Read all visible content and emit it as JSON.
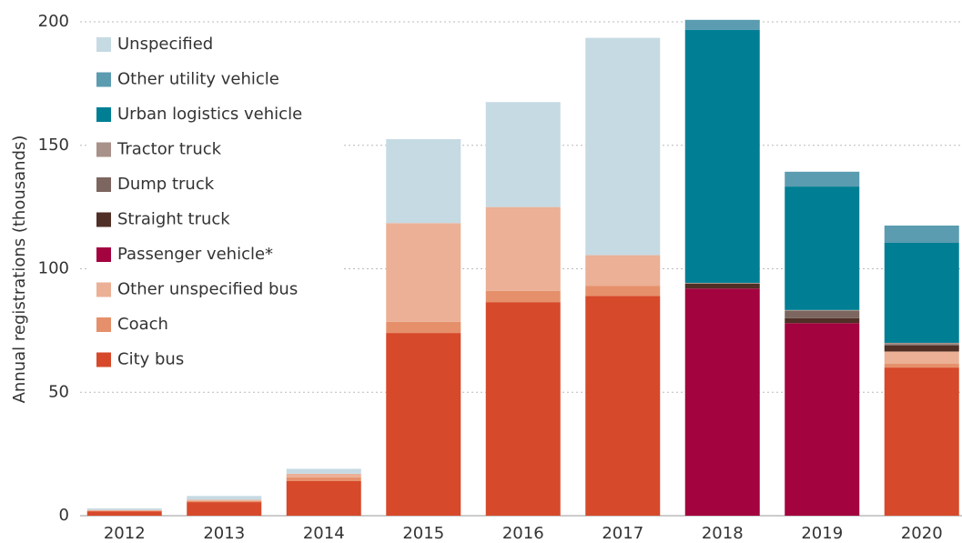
{
  "chart_data": {
    "type": "stacked_bar",
    "y_label": "Annual registrations (thousands)",
    "categories": [
      "2012",
      "2013",
      "2014",
      "2015",
      "2016",
      "2017",
      "2018",
      "2019",
      "2020"
    ],
    "series": [
      {
        "name": "City bus",
        "color": "#d6492a",
        "values": [
          1.8,
          5.5,
          14,
          74,
          86.5,
          89,
          0,
          0,
          60
        ]
      },
      {
        "name": "Coach",
        "color": "#e6906b",
        "values": [
          0.2,
          0.5,
          1.5,
          4.5,
          4.5,
          4,
          0,
          0,
          1.5
        ]
      },
      {
        "name": "Other unspecified bus",
        "color": "#ebb095",
        "values": [
          0.3,
          0.5,
          1.5,
          40,
          34,
          12.5,
          0,
          0,
          5
        ]
      },
      {
        "name": "Passenger vehicle*",
        "color": "#a3033e",
        "values": [
          0,
          0,
          0,
          0,
          0,
          0,
          92,
          78,
          0
        ]
      },
      {
        "name": "Straight truck",
        "color": "#4f2f26",
        "values": [
          0,
          0,
          0,
          0,
          0,
          0,
          2,
          2,
          2.5
        ]
      },
      {
        "name": "Dump truck",
        "color": "#7d6660",
        "values": [
          0,
          0,
          0,
          0,
          0,
          0,
          0,
          3,
          0.5
        ]
      },
      {
        "name": "Tractor truck",
        "color": "#a89189",
        "values": [
          0,
          0,
          0,
          0,
          0,
          0,
          0.3,
          0.3,
          0.5
        ]
      },
      {
        "name": "Urban logistics vehicle",
        "color": "#007f94",
        "values": [
          0,
          0,
          0,
          0,
          0,
          0,
          102.5,
          50,
          40.5
        ]
      },
      {
        "name": "Other utility vehicle",
        "color": "#5b9cb0",
        "values": [
          0,
          0,
          0,
          0,
          0,
          0,
          4,
          6,
          7
        ]
      },
      {
        "name": "Unspecified",
        "color": "#c6dae3",
        "values": [
          0.7,
          1.5,
          2,
          34,
          42.5,
          88,
          0,
          0,
          0
        ]
      }
    ],
    "ylim": [
      0,
      200
    ],
    "yticks": [
      0,
      50,
      100,
      150,
      200
    ],
    "grid": true,
    "legend": "upper left"
  }
}
